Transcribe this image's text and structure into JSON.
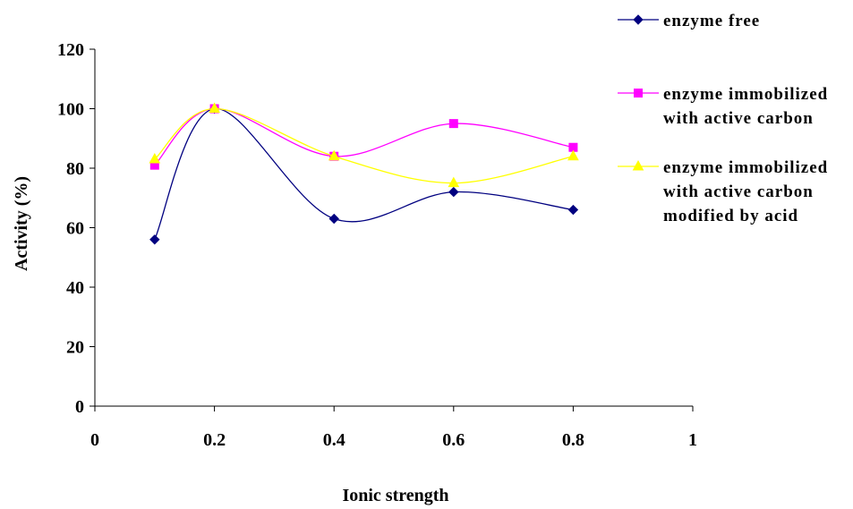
{
  "chart_data": {
    "type": "line",
    "xlabel": "Ionic strength",
    "ylabel": "Activity (%)",
    "xlim": [
      0,
      1
    ],
    "ylim": [
      0,
      120
    ],
    "x_ticks": [
      "0",
      "0.2",
      "0.4",
      "0.6",
      "0.8",
      "1"
    ],
    "y_ticks": [
      "0",
      "20",
      "40",
      "60",
      "80",
      "100",
      "120"
    ],
    "grid": false,
    "legend_position": "top-right",
    "smooth": true,
    "series": [
      {
        "name": "enzyme free",
        "legend_lines": [
          "enzyme free"
        ],
        "color": "#000080",
        "marker": "diamond",
        "x": [
          0.1,
          0.2,
          0.4,
          0.6,
          0.8
        ],
        "y": [
          56,
          100,
          63,
          72,
          66
        ]
      },
      {
        "name": "enzyme immobilized with active carbon",
        "legend_lines": [
          "enzyme immobilized",
          "with active carbon"
        ],
        "color": "#FF00FF",
        "marker": "square",
        "x": [
          0.1,
          0.2,
          0.4,
          0.6,
          0.8
        ],
        "y": [
          81,
          100,
          84,
          95,
          87
        ]
      },
      {
        "name": "enzyme immobilized with active carbon modified by acid",
        "legend_lines": [
          "enzyme immobilized",
          "with active carbon",
          "modified by acid"
        ],
        "color": "#FFFF00",
        "marker": "triangle",
        "x": [
          0.1,
          0.2,
          0.4,
          0.6,
          0.8
        ],
        "y": [
          83,
          100,
          84,
          75,
          84
        ]
      }
    ]
  }
}
